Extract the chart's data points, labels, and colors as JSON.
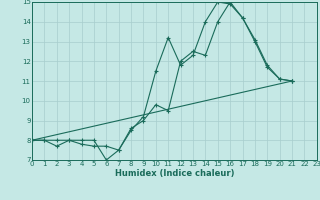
{
  "xlabel": "Humidex (Indice chaleur)",
  "xlim": [
    0,
    23
  ],
  "ylim": [
    7,
    15
  ],
  "yticks": [
    7,
    8,
    9,
    10,
    11,
    12,
    13,
    14,
    15
  ],
  "xticks": [
    0,
    1,
    2,
    3,
    4,
    5,
    6,
    7,
    8,
    9,
    10,
    11,
    12,
    13,
    14,
    15,
    16,
    17,
    18,
    19,
    20,
    21,
    22,
    23
  ],
  "bg_color": "#c5e8e5",
  "line_color": "#1a6b5a",
  "grid_color": "#a8cece",
  "line1": {
    "x": [
      0,
      1,
      2,
      3,
      4,
      5,
      6,
      7,
      8,
      9,
      10,
      11,
      12,
      13,
      14,
      15,
      16,
      17,
      18,
      19,
      20,
      21
    ],
    "y": [
      8,
      8,
      8,
      8,
      8,
      8,
      7.0,
      7.5,
      8.5,
      9.2,
      11.5,
      13.2,
      11.8,
      12.3,
      14.0,
      15.0,
      14.9,
      14.2,
      13.0,
      11.7,
      11.1,
      11.0
    ]
  },
  "line2": {
    "x": [
      0,
      1,
      2,
      3,
      4,
      5,
      6,
      7,
      8,
      9,
      10,
      11,
      12,
      13,
      14,
      15,
      16,
      17,
      18,
      19,
      20,
      21
    ],
    "y": [
      8,
      8,
      7.7,
      8.0,
      7.8,
      7.7,
      7.7,
      7.5,
      8.6,
      9.0,
      9.8,
      9.5,
      12.0,
      12.5,
      12.3,
      14.0,
      15.0,
      14.2,
      13.1,
      11.8,
      11.1,
      11.0
    ]
  },
  "line3": {
    "x": [
      0,
      21
    ],
    "y": [
      8,
      11.0
    ]
  }
}
